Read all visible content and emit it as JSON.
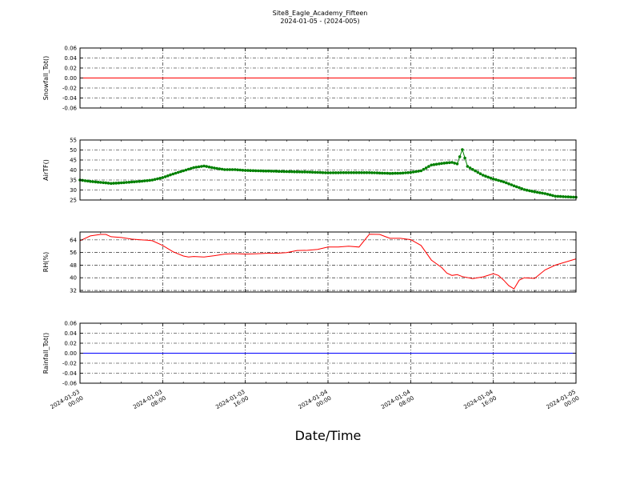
{
  "title": "Site8_Eagle_Academy_Fifteen",
  "subtitle": "2024-01-05 - (2024-005)",
  "xlabel": "Date/Time",
  "x_ticks": [
    {
      "line1": "2024-01-03",
      "line2": "00:00",
      "hours": 0
    },
    {
      "line1": "2024-01-03",
      "line2": "08:00",
      "hours": 8
    },
    {
      "line1": "2024-01-03",
      "line2": "16:00",
      "hours": 16
    },
    {
      "line1": "2024-01-04",
      "line2": "00:00",
      "hours": 24
    },
    {
      "line1": "2024-01-04",
      "line2": "08:00",
      "hours": 32
    },
    {
      "line1": "2024-01-04",
      "line2": "16:00",
      "hours": 40
    },
    {
      "line1": "2024-01-05",
      "line2": "00:00",
      "hours": 48
    }
  ],
  "chart_data": [
    {
      "type": "line",
      "ylabel": "Snowfall_Tot()",
      "ylim": [
        -0.06,
        0.06
      ],
      "yticks": [
        "0.06",
        "0.04",
        "0.02",
        "0.00",
        "-0.02",
        "-0.04",
        "-0.06"
      ],
      "ytick_values": [
        0.06,
        0.04,
        0.02,
        0.0,
        -0.02,
        -0.04,
        -0.06
      ],
      "grid": true,
      "series": [
        {
          "color": "#ff0000",
          "marker": false,
          "x": [
            0,
            48
          ],
          "y": [
            0,
            0
          ]
        }
      ]
    },
    {
      "type": "line",
      "ylabel": "AirTF()",
      "ylim": [
        25,
        55
      ],
      "yticks": [
        "55",
        "50",
        "45",
        "40",
        "35",
        "30",
        "25"
      ],
      "ytick_values": [
        55,
        50,
        45,
        40,
        35,
        30,
        25
      ],
      "grid": true,
      "series": [
        {
          "color": "#008000",
          "marker": true,
          "x": [
            0,
            1,
            2,
            3,
            4,
            5,
            6,
            7,
            8,
            9,
            10,
            11,
            12,
            13,
            14,
            15,
            16,
            18,
            20,
            22,
            24,
            26,
            28,
            30,
            31,
            32,
            33,
            34,
            35,
            36,
            36.5,
            37,
            37.5,
            38,
            39,
            40,
            41,
            42,
            43,
            44,
            45,
            46,
            47,
            48
          ],
          "y": [
            35,
            34.3,
            33.8,
            33.3,
            33.6,
            34,
            34.4,
            35,
            36.2,
            38,
            39.6,
            41.2,
            42,
            41,
            40.2,
            40.2,
            39.8,
            39.5,
            39.2,
            39,
            38.6,
            38.7,
            38.7,
            38.3,
            38.4,
            38.8,
            39.6,
            42.5,
            43.3,
            43.8,
            43.1,
            50.2,
            41.8,
            40.3,
            37.4,
            35.5,
            34.1,
            32.1,
            30.2,
            29.1,
            28.2,
            26.9,
            26.6,
            26.4
          ]
        }
      ]
    },
    {
      "type": "line",
      "ylabel": "RH(%)",
      "ylim": [
        31,
        69
      ],
      "yticks": [
        "64",
        "56",
        "48",
        "40",
        "32"
      ],
      "ytick_values": [
        64,
        56,
        48,
        40,
        32
      ],
      "grid": true,
      "series": [
        {
          "color": "#ff0000",
          "marker": false,
          "x": [
            0,
            1,
            2,
            2.5,
            3,
            4,
            5,
            6,
            6.5,
            7,
            8,
            9,
            10,
            10.5,
            11,
            12,
            13,
            14,
            15,
            16,
            17,
            18,
            19,
            20,
            21,
            22,
            23,
            24,
            25,
            26,
            27,
            28,
            29,
            29.5,
            30,
            31,
            32,
            33,
            34,
            35,
            35.5,
            36,
            36.5,
            37,
            38,
            39,
            40,
            40.5,
            41,
            41.5,
            42,
            42.5,
            43,
            44,
            45,
            46,
            47,
            48
          ],
          "y": [
            63.5,
            66.5,
            67.5,
            67.5,
            66,
            65.5,
            64.5,
            64,
            63.8,
            63.5,
            60.5,
            56.5,
            53.8,
            53.2,
            53.5,
            53.2,
            54,
            55,
            55.3,
            55,
            55.2,
            55.5,
            55.5,
            56,
            57.3,
            57.4,
            58,
            59.5,
            59.5,
            60,
            59.5,
            67.6,
            67.5,
            66.2,
            65,
            65,
            64.2,
            60.5,
            51.2,
            46.5,
            43,
            41.5,
            42,
            40.8,
            39.5,
            40.6,
            42.6,
            41.5,
            38.5,
            35,
            33,
            38.5,
            40,
            39.6,
            45,
            48,
            50,
            52
          ]
        }
      ]
    },
    {
      "type": "line",
      "ylabel": "Rainfall_Tot()",
      "ylim": [
        -0.06,
        0.06
      ],
      "yticks": [
        "0.06",
        "0.04",
        "0.02",
        "0.00",
        "-0.02",
        "-0.04",
        "-0.06"
      ],
      "ytick_values": [
        0.06,
        0.04,
        0.02,
        0.0,
        -0.02,
        -0.04,
        -0.06
      ],
      "grid": true,
      "series": [
        {
          "color": "#0000ff",
          "marker": false,
          "x": [
            0,
            48
          ],
          "y": [
            0,
            0
          ]
        }
      ]
    }
  ]
}
